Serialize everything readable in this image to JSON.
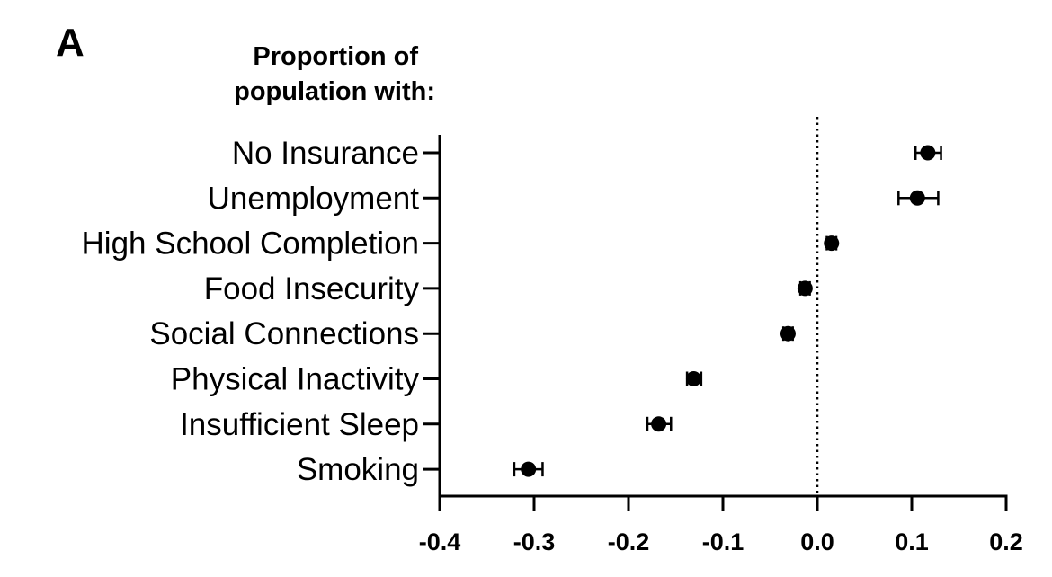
{
  "panel_label": "A",
  "heading_lines": [
    "Proportion of",
    "population with:"
  ],
  "chart_data": {
    "type": "scatter",
    "orientation": "horizontal",
    "categories": [
      "No Insurance",
      "Unemployment",
      "High School Completion",
      "Food Insecurity",
      "Social Connections",
      "Physical Inactivity",
      "Insufficient Sleep",
      "Smoking"
    ],
    "series": [
      {
        "values": [
          0.117,
          0.106,
          0.015,
          -0.013,
          -0.031,
          -0.131,
          -0.168,
          -0.306
        ],
        "error_low": [
          0.104,
          0.086,
          0.01,
          -0.018,
          -0.036,
          -0.138,
          -0.18,
          -0.321
        ],
        "error_high": [
          0.131,
          0.128,
          0.02,
          -0.008,
          -0.026,
          -0.123,
          -0.155,
          -0.291
        ]
      }
    ],
    "xlim": [
      -0.4,
      0.2
    ],
    "x_ticks": [
      "-0.4",
      "-0.3",
      "-0.2",
      "-0.1",
      "0.0",
      "0.1",
      "0.2"
    ],
    "reference_line": 0.0,
    "grid": false,
    "colors": {
      "marker": "#000000",
      "axis": "#000000"
    }
  }
}
